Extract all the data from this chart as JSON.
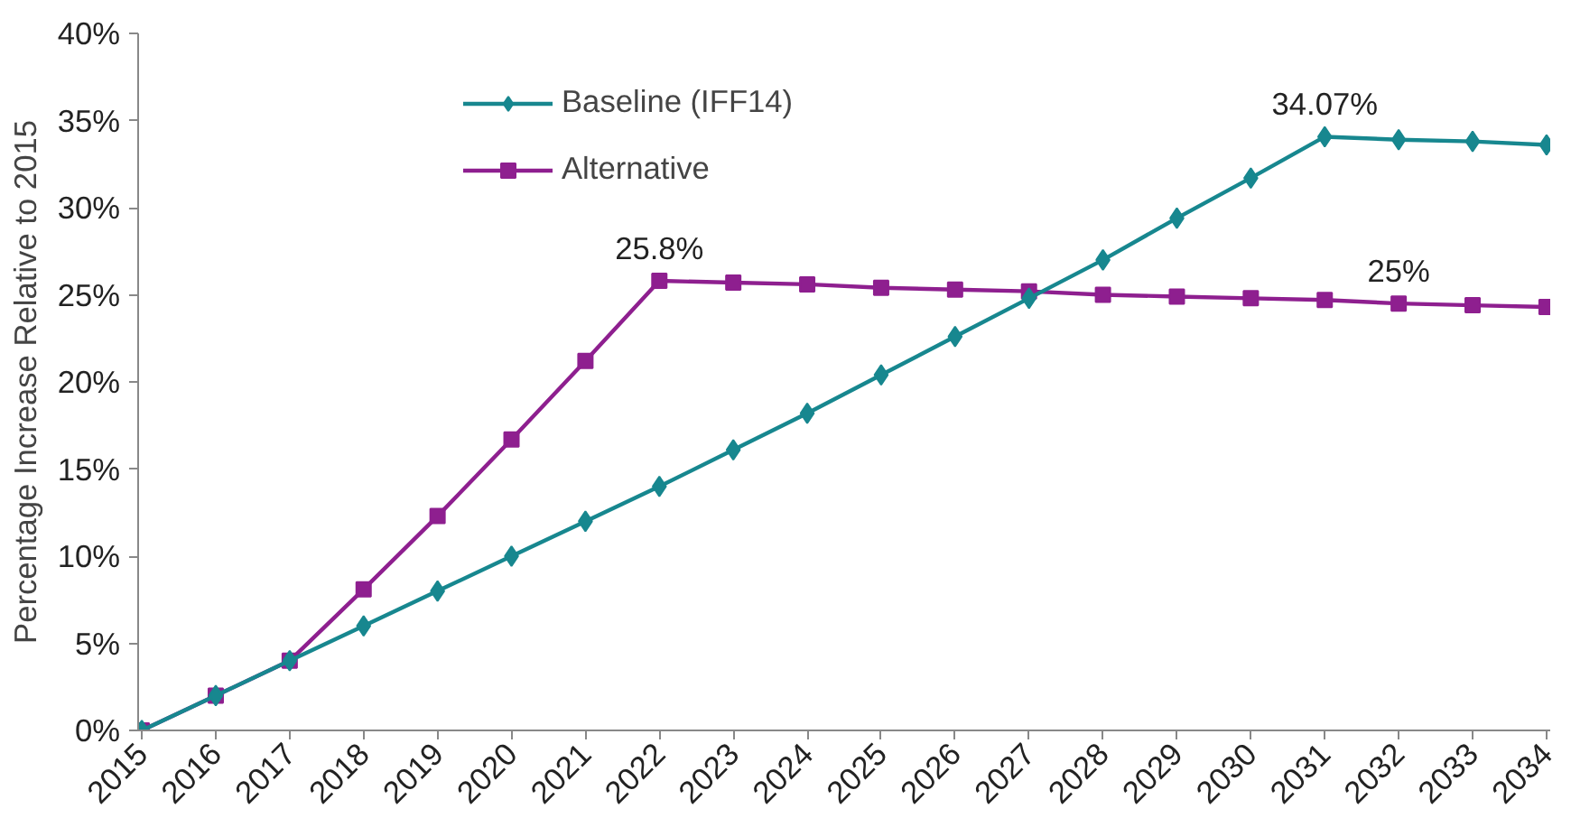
{
  "chart_data": {
    "type": "line",
    "ylabel": "Percentage Increase Relative to 2015",
    "categories": [
      "2015",
      "2016",
      "2017",
      "2018",
      "2019",
      "2020",
      "2021",
      "2022",
      "2023",
      "2024",
      "2025",
      "2026",
      "2027",
      "2028",
      "2029",
      "2030",
      "2031",
      "2032",
      "2033",
      "2034"
    ],
    "series": [
      {
        "name": "Baseline (IFF14)",
        "color": "#17878f",
        "marker": "diamond",
        "values": [
          0,
          2,
          4,
          6,
          8,
          10,
          12,
          14,
          16.1,
          18.2,
          20.4,
          22.6,
          24.8,
          27.0,
          29.4,
          31.7,
          34.07,
          33.9,
          33.8,
          33.6
        ]
      },
      {
        "name": "Alternative",
        "color": "#8e1f8f",
        "marker": "square",
        "values": [
          0,
          2,
          4,
          8.1,
          12.3,
          16.7,
          21.2,
          25.8,
          25.7,
          25.6,
          25.4,
          25.3,
          25.2,
          25.0,
          24.9,
          24.8,
          24.7,
          24.5,
          24.4,
          24.3
        ]
      }
    ],
    "ylim": [
      0,
      40
    ],
    "yticks": [
      {
        "value": 0,
        "label": "0%"
      },
      {
        "value": 5,
        "label": "5%"
      },
      {
        "value": 10,
        "label": "10%"
      },
      {
        "value": 15,
        "label": "15%"
      },
      {
        "value": 20,
        "label": "20%"
      },
      {
        "value": 25,
        "label": "25%"
      },
      {
        "value": 30,
        "label": "30%"
      },
      {
        "value": 35,
        "label": "35%"
      },
      {
        "value": 40,
        "label": "40%"
      }
    ],
    "annotations": [
      {
        "text": "25.8%",
        "x": "2022",
        "y": 25.8
      },
      {
        "text": "34.07%",
        "x": "2031",
        "y": 34.07
      },
      {
        "text": "25%",
        "x": "2032",
        "y": 24.5
      }
    ],
    "grid": false,
    "legend": "top left",
    "line_style": "solid"
  }
}
